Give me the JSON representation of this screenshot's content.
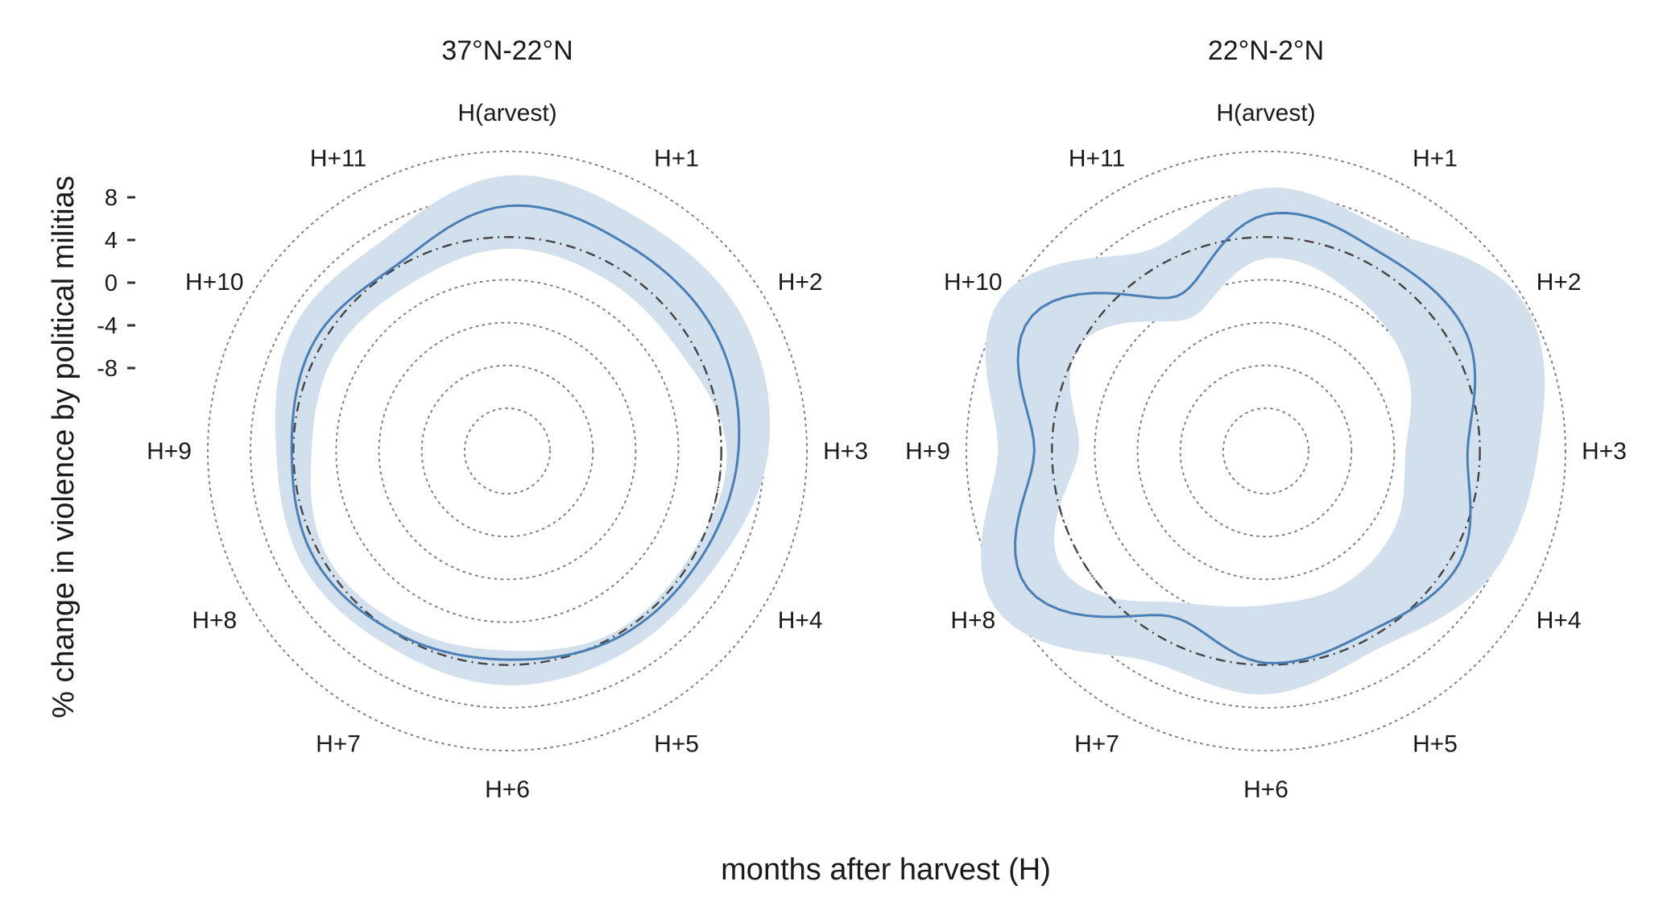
{
  "chart_data": [
    {
      "type": "radar",
      "title": "37°N-22°N",
      "categories": [
        "H(arvest)",
        "H+1",
        "H+2",
        "H+3",
        "H+4",
        "H+5",
        "H+6",
        "H+7",
        "H+8",
        "H+9",
        "H+10",
        "H+11"
      ],
      "series": [
        {
          "values": [
            5.8,
            4.6,
            4.7,
            3.2,
            1.3,
            0.5,
            -1.0,
            -0.2,
            1.3,
            0.3,
            1.5,
            0.5
          ],
          "lower": [
            -2.2,
            -3.0,
            -2.8,
            1.0,
            -0.6,
            -0.7,
            -2.7,
            -2.0,
            -1.0,
            -3.4,
            -3.0,
            -3.9
          ],
          "upper": [
            11.5,
            9.9,
            10.6,
            8.8,
            4.4,
            3.6,
            3.8,
            2.7,
            3.8,
            3.2,
            6.1,
            5.8
          ]
        }
      ],
      "ylabel": "% change in violence by political militias",
      "yticks": [
        "8",
        "4",
        "0",
        "-4",
        "-8"
      ],
      "ylim": [
        -40,
        16
      ]
    },
    {
      "type": "radar",
      "title": "22°N-2°N",
      "categories": [
        "H(arvest)",
        "H+1",
        "H+2",
        "H+3",
        "H+4",
        "H+5",
        "H+6",
        "H+7",
        "H+8",
        "H+9",
        "H+10",
        "H+11"
      ],
      "series": [
        {
          "values": [
            4.2,
            2.8,
            3.4,
            -2.3,
            1.8,
            -1.1,
            -0.4,
            -4.3,
            11.4,
            3.3,
            10.5,
            -6.6
          ],
          "lower": [
            -4.0,
            -6.5,
            -9.5,
            -13.9,
            -12.0,
            -11.1,
            -11.2,
            -7.3,
            4.0,
            -5.0,
            0.0,
            -11.4
          ],
          "upper": [
            9.2,
            7.3,
            15.6,
            10.9,
            8.0,
            2.5,
            5.5,
            5.2,
            18.5,
            10.1,
            17.2,
            3.4
          ]
        }
      ],
      "yticks": [
        "8",
        "4",
        "0",
        "-4",
        "-8"
      ],
      "ylim": [
        -40,
        16
      ]
    }
  ],
  "xlabel": "months after harvest (H)",
  "colors": {
    "line": "#4a7fb5",
    "band": "#d2dfec",
    "grid": "#808080",
    "zero_ring": "#444444"
  }
}
